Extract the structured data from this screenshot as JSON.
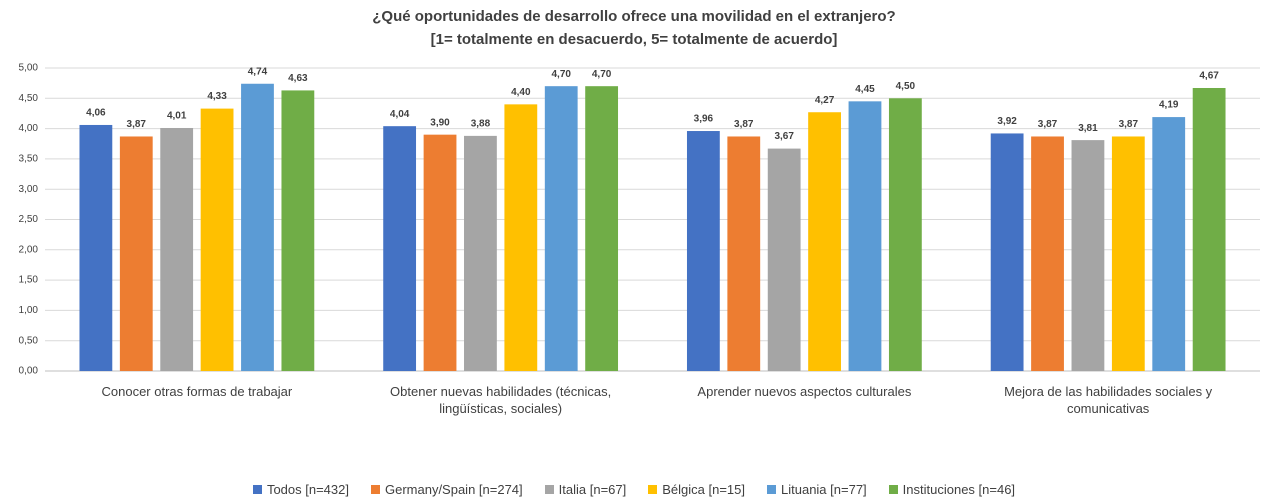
{
  "chart_data": {
    "type": "bar",
    "title": "¿Qué oportunidades de desarrollo ofrece una movilidad en el extranjero?",
    "subtitle": "[1= totalmente en desacuerdo, 5= totalmente de acuerdo]",
    "categories": [
      "Conocer otras formas de trabajar",
      "Obtener nuevas habilidades (técnicas, lingüísticas, sociales)",
      "Aprender nuevos aspectos culturales",
      "Mejora de las habilidades sociales y comunicativas"
    ],
    "series": [
      {
        "name": "Todos [n=432]",
        "color": "#4472c4",
        "values": [
          4.06,
          4.04,
          3.96,
          3.92
        ],
        "value_labels": [
          "4,06",
          "4,04",
          "3,96",
          "3,92"
        ]
      },
      {
        "name": "Germany/Spain [n=274]",
        "color": "#ed7d31",
        "values": [
          3.87,
          3.9,
          3.87,
          3.87
        ],
        "value_labels": [
          "3,87",
          "3,90",
          "3,87",
          "3,87"
        ]
      },
      {
        "name": "Italia [n=67]",
        "color": "#a5a5a5",
        "values": [
          4.01,
          3.88,
          3.67,
          3.81
        ],
        "value_labels": [
          "4,01",
          "3,88",
          "3,67",
          "3,81"
        ]
      },
      {
        "name": "Bélgica [n=15]",
        "color": "#ffc000",
        "values": [
          4.33,
          4.4,
          4.27,
          3.87
        ],
        "value_labels": [
          "4,33",
          "4,40",
          "4,27",
          "3,87"
        ]
      },
      {
        "name": "Lituania [n=77]",
        "color": "#5b9bd5",
        "values": [
          4.74,
          4.7,
          4.45,
          4.19
        ],
        "value_labels": [
          "4,74",
          "4,70",
          "4,45",
          "4,19"
        ]
      },
      {
        "name": "Instituciones [n=46]",
        "color": "#70ad47",
        "values": [
          4.63,
          4.7,
          4.5,
          4.67
        ],
        "value_labels": [
          "4,63",
          "4,70",
          "4,50",
          "4,67"
        ]
      }
    ],
    "ylim": [
      0,
      5
    ],
    "yticks": [
      {
        "value": 0,
        "label": "0,00"
      },
      {
        "value": 0.5,
        "label": "0,50"
      },
      {
        "value": 1,
        "label": "1,00"
      },
      {
        "value": 1.5,
        "label": "1,50"
      },
      {
        "value": 2,
        "label": "2,00"
      },
      {
        "value": 2.5,
        "label": "2,50"
      },
      {
        "value": 3,
        "label": "3,00"
      },
      {
        "value": 3.5,
        "label": "3,50"
      },
      {
        "value": 4,
        "label": "4,00"
      },
      {
        "value": 4.5,
        "label": "4,50"
      },
      {
        "value": 5,
        "label": "5,00"
      }
    ],
    "grid": true,
    "legend": "bottom"
  }
}
